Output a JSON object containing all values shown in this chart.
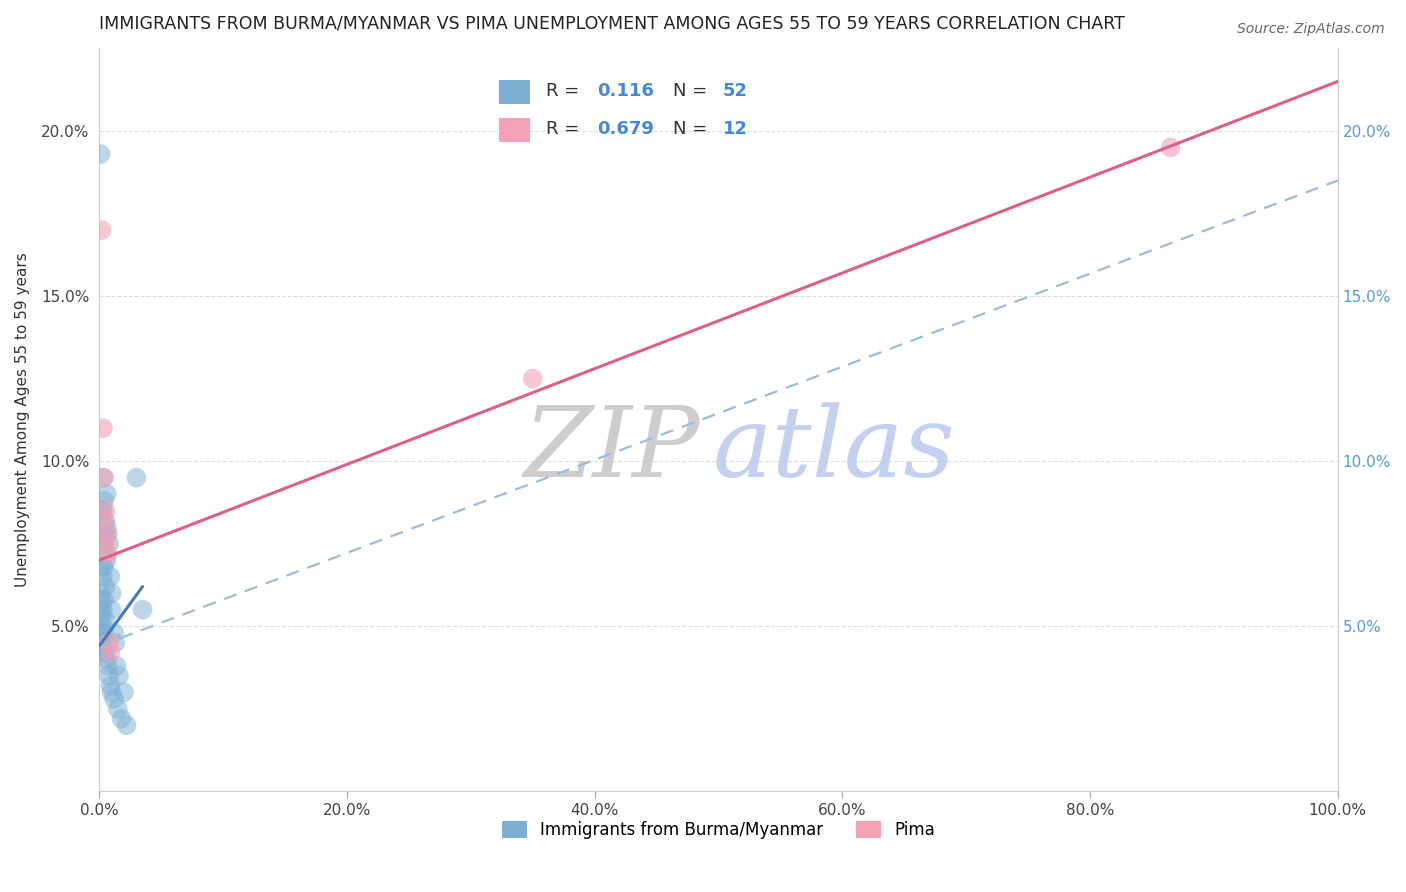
{
  "title": "IMMIGRANTS FROM BURMA/MYANMAR VS PIMA UNEMPLOYMENT AMONG AGES 55 TO 59 YEARS CORRELATION CHART",
  "source": "Source: ZipAtlas.com",
  "ylabel": "Unemployment Among Ages 55 to 59 years",
  "xlim": [
    0.0,
    1.0
  ],
  "ylim": [
    0.0,
    0.225
  ],
  "xticks": [
    0.0,
    0.2,
    0.4,
    0.6,
    0.8,
    1.0
  ],
  "xtick_labels": [
    "0.0%",
    "20.0%",
    "40.0%",
    "60.0%",
    "80.0%",
    "100.0%"
  ],
  "yticks_left": [
    0.0,
    0.05,
    0.1,
    0.15,
    0.2
  ],
  "ytick_labels_left": [
    "",
    "5.0%",
    "10.0%",
    "15.0%",
    "20.0%"
  ],
  "yticks_right": [
    0.05,
    0.1,
    0.15,
    0.2
  ],
  "ytick_labels_right": [
    "5.0%",
    "10.0%",
    "15.0%",
    "20.0%"
  ],
  "blue_scatter_x": [
    0.001,
    0.001,
    0.001,
    0.001,
    0.001,
    0.002,
    0.002,
    0.002,
    0.002,
    0.002,
    0.002,
    0.003,
    0.003,
    0.003,
    0.003,
    0.003,
    0.003,
    0.003,
    0.004,
    0.004,
    0.004,
    0.004,
    0.004,
    0.005,
    0.005,
    0.005,
    0.005,
    0.005,
    0.006,
    0.006,
    0.006,
    0.006,
    0.007,
    0.007,
    0.008,
    0.008,
    0.009,
    0.009,
    0.01,
    0.01,
    0.01,
    0.012,
    0.012,
    0.013,
    0.014,
    0.015,
    0.016,
    0.018,
    0.02,
    0.022,
    0.03,
    0.035
  ],
  "blue_scatter_y": [
    0.193,
    0.06,
    0.055,
    0.05,
    0.045,
    0.085,
    0.068,
    0.058,
    0.053,
    0.048,
    0.044,
    0.095,
    0.085,
    0.075,
    0.065,
    0.055,
    0.05,
    0.043,
    0.088,
    0.078,
    0.068,
    0.058,
    0.048,
    0.082,
    0.072,
    0.062,
    0.052,
    0.042,
    0.09,
    0.08,
    0.07,
    0.04,
    0.078,
    0.038,
    0.075,
    0.035,
    0.065,
    0.032,
    0.06,
    0.055,
    0.03,
    0.048,
    0.028,
    0.045,
    0.038,
    0.025,
    0.035,
    0.022,
    0.03,
    0.02,
    0.095,
    0.055
  ],
  "pink_scatter_x": [
    0.002,
    0.003,
    0.004,
    0.004,
    0.005,
    0.005,
    0.006,
    0.007,
    0.008,
    0.009,
    0.35,
    0.865
  ],
  "pink_scatter_y": [
    0.17,
    0.11,
    0.095,
    0.082,
    0.085,
    0.075,
    0.078,
    0.072,
    0.045,
    0.042,
    0.125,
    0.195
  ],
  "blue_solid_line_x": [
    0.0,
    0.035
  ],
  "blue_solid_line_y": [
    0.044,
    0.062
  ],
  "blue_dashed_line_x": [
    0.0,
    1.0
  ],
  "blue_dashed_line_y": [
    0.044,
    0.185
  ],
  "pink_line_x": [
    0.0,
    1.0
  ],
  "pink_line_y": [
    0.07,
    0.215
  ],
  "blue_dot_color": "#7BAFD4",
  "pink_dot_color": "#F4A0B5",
  "blue_line_color": "#4477BB",
  "blue_dash_color": "#99BBDD",
  "pink_line_color": "#E06080",
  "R_blue": "0.116",
  "N_blue": "52",
  "R_pink": "0.679",
  "N_pink": "12",
  "legend_label_blue": "Immigrants from Burma/Myanmar",
  "legend_label_pink": "Pima",
  "watermark_zip": "ZIP",
  "watermark_atlas": "atlas",
  "zip_color": "#C8C8C8",
  "atlas_color": "#BBCCEE",
  "background_color": "#FFFFFF",
  "grid_color": "#DDDDDD",
  "title_fontsize": 12.5,
  "label_fontsize": 11,
  "tick_fontsize": 11,
  "legend_fontsize": 13
}
